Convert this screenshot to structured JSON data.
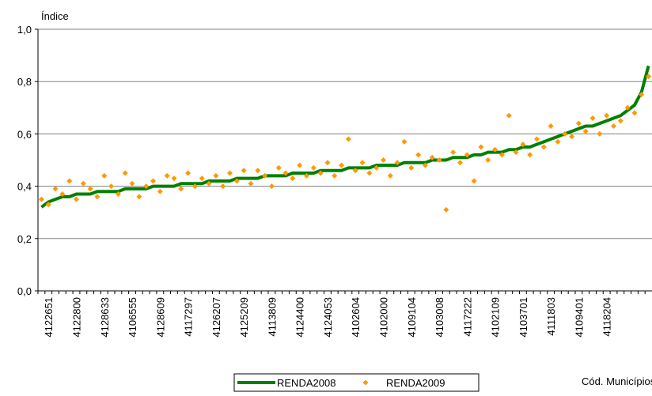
{
  "chart_data": {
    "type": "line_scatter",
    "y_label": "Índice",
    "x_label": "Cód. Municípios",
    "ylim": [
      0,
      1
    ],
    "yticks": [
      {
        "value": 0,
        "label": "0,0"
      },
      {
        "value": 0.2,
        "label": "0,2"
      },
      {
        "value": 0.4,
        "label": "0,4"
      },
      {
        "value": 0.6,
        "label": "0,6"
      },
      {
        "value": 0.8,
        "label": "0,8"
      },
      {
        "value": 1,
        "label": "1,0"
      }
    ],
    "grid": true,
    "categories": [
      null,
      "4122651",
      null,
      null,
      null,
      "4122800",
      null,
      null,
      null,
      "4128633",
      null,
      null,
      null,
      "4106555",
      null,
      null,
      null,
      "4128609",
      null,
      null,
      null,
      "4117297",
      null,
      null,
      null,
      "4126207",
      null,
      null,
      null,
      "4125209",
      null,
      null,
      null,
      "4113809",
      null,
      null,
      null,
      "4124400",
      null,
      null,
      null,
      "4124053",
      null,
      null,
      null,
      "4102604",
      null,
      null,
      null,
      "4102000",
      null,
      null,
      null,
      "4109104",
      null,
      null,
      null,
      "4103008",
      null,
      null,
      null,
      "4117222",
      null,
      null,
      null,
      "4102109",
      null,
      null,
      null,
      "4103701",
      null,
      null,
      null,
      "4111803",
      null,
      null,
      null,
      "4109401",
      null,
      null,
      null,
      "4118204",
      null,
      null,
      null,
      null,
      null,
      null
    ],
    "series": [
      {
        "name": "RENDA2008",
        "color": "#008000",
        "style": "line",
        "values": [
          0.32,
          0.34,
          0.35,
          0.36,
          0.36,
          0.37,
          0.37,
          0.37,
          0.38,
          0.38,
          0.38,
          0.38,
          0.39,
          0.39,
          0.39,
          0.39,
          0.4,
          0.4,
          0.4,
          0.4,
          0.41,
          0.41,
          0.41,
          0.41,
          0.42,
          0.42,
          0.42,
          0.42,
          0.43,
          0.43,
          0.43,
          0.43,
          0.44,
          0.44,
          0.44,
          0.44,
          0.45,
          0.45,
          0.45,
          0.45,
          0.46,
          0.46,
          0.46,
          0.46,
          0.47,
          0.47,
          0.47,
          0.47,
          0.48,
          0.48,
          0.48,
          0.48,
          0.49,
          0.49,
          0.49,
          0.49,
          0.5,
          0.5,
          0.5,
          0.51,
          0.51,
          0.51,
          0.52,
          0.52,
          0.53,
          0.53,
          0.53,
          0.54,
          0.54,
          0.55,
          0.55,
          0.56,
          0.57,
          0.58,
          0.59,
          0.6,
          0.61,
          0.62,
          0.63,
          0.63,
          0.64,
          0.65,
          0.66,
          0.67,
          0.69,
          0.71,
          0.76,
          0.86
        ]
      },
      {
        "name": "RENDA2009",
        "color": "#ff9900",
        "style": "scatter",
        "values": [
          0.35,
          0.33,
          0.39,
          0.37,
          0.42,
          0.35,
          0.41,
          0.39,
          0.36,
          0.44,
          0.4,
          0.37,
          0.45,
          0.41,
          0.36,
          0.4,
          0.42,
          0.38,
          0.44,
          0.43,
          0.39,
          0.45,
          0.4,
          0.43,
          0.41,
          0.44,
          0.4,
          0.45,
          0.42,
          0.46,
          0.41,
          0.46,
          0.44,
          0.4,
          0.47,
          0.45,
          0.43,
          0.48,
          0.44,
          0.47,
          0.45,
          0.49,
          0.44,
          0.48,
          0.58,
          0.46,
          0.49,
          0.45,
          0.47,
          0.5,
          0.44,
          0.49,
          0.57,
          0.47,
          0.52,
          0.48,
          0.51,
          0.5,
          0.31,
          0.53,
          0.49,
          0.52,
          0.42,
          0.55,
          0.5,
          0.54,
          0.52,
          0.67,
          0.53,
          0.56,
          0.52,
          0.58,
          0.55,
          0.63,
          0.57,
          0.6,
          0.59,
          0.64,
          0.61,
          0.66,
          0.6,
          0.67,
          0.63,
          0.65,
          0.7,
          0.68,
          0.75,
          0.82
        ]
      }
    ]
  }
}
